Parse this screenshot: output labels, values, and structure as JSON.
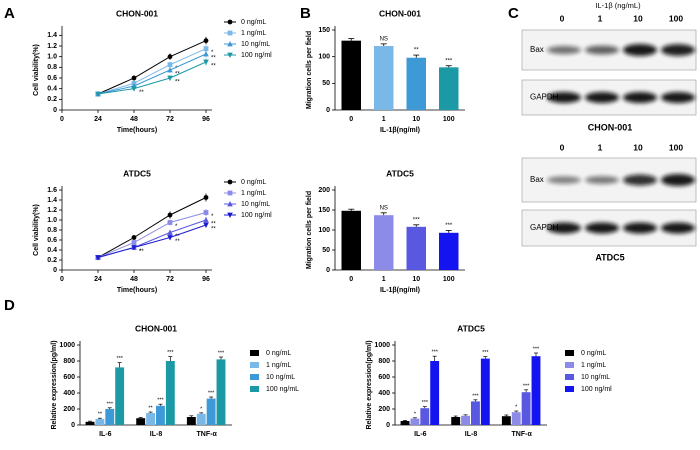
{
  "panel_labels": [
    "A",
    "B",
    "C",
    "D"
  ],
  "chart_data": [
    {
      "type": "line",
      "title": "CHON-001",
      "x_label": "Time(hours)",
      "y_label": "Cell viability(%)",
      "x": [
        24,
        48,
        72,
        96
      ],
      "xlim": [
        0,
        100
      ],
      "xticks": [
        0,
        24,
        48,
        72,
        96
      ],
      "ylim": [
        0,
        1.5
      ],
      "yticks": [
        0,
        0.2,
        0.4,
        0.6,
        0.8,
        {
          "value": 1,
          "label": "1.0"
        },
        1.2,
        1.4
      ],
      "legend": true,
      "series": [
        {
          "name": "0 ng/mL",
          "color": "#000000",
          "marker": "circle",
          "values": [
            0.3,
            0.6,
            1.0,
            1.3
          ],
          "errors": [
            0.02,
            0.05,
            0.06,
            0.07
          ],
          "significance": [
            null,
            null,
            null,
            null
          ]
        },
        {
          "name": "1 ng/mL",
          "color": "#7ab8e8",
          "marker": "square",
          "values": [
            0.3,
            0.5,
            0.85,
            1.15
          ],
          "errors": [
            0.02,
            0.04,
            0.05,
            0.06
          ],
          "significance": [
            null,
            null,
            "*",
            "*"
          ]
        },
        {
          "name": "10 ng/mL",
          "color": "#3d9ad6",
          "marker": "triangle",
          "values": [
            0.3,
            0.45,
            0.75,
            1.05
          ],
          "errors": [
            0.02,
            0.04,
            0.05,
            0.06
          ],
          "significance": [
            null,
            null,
            "**",
            "**"
          ]
        },
        {
          "name": "100 ng/ml",
          "color": "#1b9aa6",
          "marker": "down",
          "values": [
            0.3,
            0.4,
            0.6,
            0.9
          ],
          "errors": [
            0.02,
            0.03,
            0.05,
            0.06
          ],
          "significance": [
            null,
            "**",
            "**",
            "**"
          ]
        }
      ]
    },
    {
      "type": "line",
      "title": "ATDC5",
      "x_label": "Time(hours)",
      "y_label": "Cell viability(%)",
      "x": [
        24,
        48,
        72,
        96
      ],
      "xlim": [
        0,
        100
      ],
      "xticks": [
        0,
        24,
        48,
        72,
        96
      ],
      "ylim": [
        0,
        1.6
      ],
      "yticks": [
        0,
        0.2,
        0.4,
        0.6,
        0.8,
        {
          "value": 1,
          "label": "1.0"
        },
        1.2,
        1.4,
        1.6
      ],
      "legend": true,
      "series": [
        {
          "name": "0 ng/mL",
          "color": "#000000",
          "marker": "circle",
          "values": [
            0.25,
            0.65,
            1.1,
            1.45
          ],
          "errors": [
            0.02,
            0.05,
            0.07,
            0.08
          ],
          "significance": [
            null,
            null,
            null,
            null
          ]
        },
        {
          "name": "1 ng/mL",
          "color": "#8c8ce8",
          "marker": "square",
          "values": [
            0.25,
            0.55,
            0.95,
            1.15
          ],
          "errors": [
            0.02,
            0.04,
            0.06,
            0.07
          ],
          "significance": [
            null,
            null,
            "*",
            "*"
          ]
        },
        {
          "name": "10 ng/mL",
          "color": "#5858e0",
          "marker": "triangle",
          "values": [
            0.25,
            0.45,
            0.75,
            1.0
          ],
          "errors": [
            0.02,
            0.04,
            0.05,
            0.06
          ],
          "significance": [
            null,
            "*",
            "**",
            "**"
          ]
        },
        {
          "name": "100 ng/ml",
          "color": "#1c1cd0",
          "marker": "down",
          "values": [
            0.25,
            0.45,
            0.65,
            0.9
          ],
          "errors": [
            0.02,
            0.03,
            0.05,
            0.05
          ],
          "significance": [
            null,
            "**",
            "**",
            "**"
          ]
        }
      ]
    },
    {
      "type": "bar",
      "title": "CHON-001",
      "x_label": "IL-1β(ng/ml)",
      "y_label": "Migration cells per field",
      "categories": [
        "0",
        "1",
        "10",
        "100"
      ],
      "values": [
        130,
        120,
        98,
        80
      ],
      "errors": [
        4,
        4,
        5,
        3
      ],
      "colors": [
        "#000000",
        "#7ab8e8",
        "#3d9ad6",
        "#1b9aa6"
      ],
      "significance": [
        null,
        "NS",
        "**",
        "***"
      ],
      "ylim": [
        0,
        150
      ],
      "yticks": [
        0,
        50,
        100,
        150
      ]
    },
    {
      "type": "bar",
      "title": "ATDC5",
      "x_label": "IL-1β(ng/ml)",
      "y_label": "Migration cells per field",
      "categories": [
        "0",
        "1",
        "10",
        "100"
      ],
      "values": [
        148,
        137,
        108,
        93
      ],
      "errors": [
        4,
        6,
        5,
        6
      ],
      "colors": [
        "#000000",
        "#8c8ce8",
        "#5858e0",
        "#1414f0"
      ],
      "significance": [
        null,
        "NS",
        "***",
        "***"
      ],
      "ylim": [
        0,
        200
      ],
      "yticks": [
        0,
        50,
        100,
        150,
        200
      ]
    },
    {
      "type": "bar",
      "title": "CHON-001",
      "y_label": "Relative expression(pg/ml)",
      "categories": [
        "IL-6",
        "IL-8",
        "TNF-α"
      ],
      "ylim": [
        0,
        1000
      ],
      "yticks": [
        0,
        200,
        400,
        600,
        800,
        1000
      ],
      "legend": true,
      "series": [
        {
          "name": "0 ng/mL",
          "color": "#000000",
          "values": [
            40,
            85,
            100
          ],
          "errors": [
            8,
            10,
            15
          ],
          "significance": [
            null,
            null,
            null
          ]
        },
        {
          "name": "1 ng/mL",
          "color": "#7ab8e8",
          "values": [
            75,
            150,
            140
          ],
          "errors": [
            10,
            12,
            12
          ],
          "significance": [
            "**",
            "**",
            "*"
          ]
        },
        {
          "name": "10 ng/mL",
          "color": "#3d9ad6",
          "values": [
            200,
            240,
            330
          ],
          "errors": [
            15,
            20,
            20
          ],
          "significance": [
            "***",
            "***",
            "***"
          ]
        },
        {
          "name": "100 ng/mL",
          "color": "#1b9aa6",
          "values": [
            720,
            800,
            820
          ],
          "errors": [
            60,
            55,
            30
          ],
          "significance": [
            "***",
            "***",
            "***"
          ]
        }
      ]
    },
    {
      "type": "bar",
      "title": "ATDC5",
      "y_label": "Relative expression(pg/ml)",
      "categories": [
        "IL-6",
        "IL-8",
        "TNF-α"
      ],
      "ylim": [
        0,
        1000
      ],
      "yticks": [
        0,
        200,
        400,
        600,
        800,
        1000
      ],
      "legend": true,
      "series": [
        {
          "name": "0 ng/mL",
          "color": "#000000",
          "values": [
            50,
            100,
            110
          ],
          "errors": [
            8,
            12,
            15
          ],
          "significance": [
            null,
            null,
            null
          ]
        },
        {
          "name": "1 ng/mL",
          "color": "#8c8ce8",
          "values": [
            80,
            115,
            160
          ],
          "errors": [
            10,
            12,
            15
          ],
          "significance": [
            "*",
            null,
            "*"
          ]
        },
        {
          "name": "10 ng/mL",
          "color": "#5858e0",
          "values": [
            210,
            295,
            410
          ],
          "errors": [
            20,
            20,
            30
          ],
          "significance": [
            "***",
            "***",
            "***"
          ]
        },
        {
          "name": "100 ng/ml",
          "color": "#1414f0",
          "values": [
            800,
            830,
            860
          ],
          "errors": [
            60,
            25,
            40
          ],
          "significance": [
            "***",
            "***",
            "***"
          ]
        }
      ]
    }
  ],
  "blots": [
    {
      "header": "IL-1β (ng/mL)",
      "lanes": [
        "0",
        "1",
        "10",
        "100"
      ],
      "rows": [
        "Bax",
        "GAPDH"
      ],
      "cell_line": "CHON-001"
    },
    {
      "lanes": [
        "0",
        "1",
        "10",
        "100"
      ],
      "rows": [
        "Bax",
        "GAPDH"
      ],
      "cell_line": "ATDC5"
    }
  ]
}
